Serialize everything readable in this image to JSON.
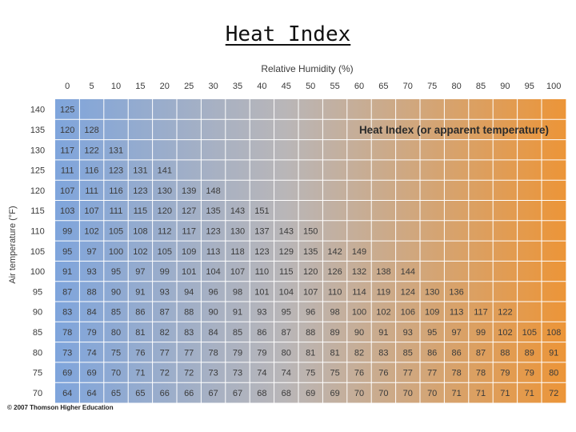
{
  "page": {
    "title": "Heat Index",
    "credit": "© 2007 Thomson Higher Education"
  },
  "colors": {
    "gradient_start": "#7fa5dc",
    "gradient_mid": "#b9b6b8",
    "gradient_end": "#ec9538",
    "grid_line": "#ffffff",
    "text": "#3a3a3a"
  },
  "chart_data": {
    "type": "table",
    "title": "Heat Index (or apparent temperature)",
    "xlabel": "Relative Humidity (%)",
    "ylabel": "Air temperature (°F)",
    "columns": [
      0,
      5,
      10,
      15,
      20,
      25,
      30,
      35,
      40,
      45,
      50,
      55,
      60,
      65,
      70,
      75,
      80,
      85,
      90,
      95,
      100
    ],
    "rows": [
      {
        "temp": 140,
        "values": [
          125
        ]
      },
      {
        "temp": 135,
        "values": [
          120,
          128
        ]
      },
      {
        "temp": 130,
        "values": [
          117,
          122,
          131
        ]
      },
      {
        "temp": 125,
        "values": [
          111,
          116,
          123,
          131,
          141
        ]
      },
      {
        "temp": 120,
        "values": [
          107,
          111,
          116,
          123,
          130,
          139,
          148
        ]
      },
      {
        "temp": 115,
        "values": [
          103,
          107,
          111,
          115,
          120,
          127,
          135,
          143,
          151
        ]
      },
      {
        "temp": 110,
        "values": [
          99,
          102,
          105,
          108,
          112,
          117,
          123,
          130,
          137,
          143,
          150
        ]
      },
      {
        "temp": 105,
        "values": [
          95,
          97,
          100,
          102,
          105,
          109,
          113,
          118,
          123,
          129,
          135,
          142,
          149
        ]
      },
      {
        "temp": 100,
        "values": [
          91,
          93,
          95,
          97,
          99,
          101,
          104,
          107,
          110,
          115,
          120,
          126,
          132,
          138,
          144
        ]
      },
      {
        "temp": 95,
        "values": [
          87,
          88,
          90,
          91,
          93,
          94,
          96,
          98,
          101,
          104,
          107,
          110,
          114,
          119,
          124,
          130,
          136
        ]
      },
      {
        "temp": 90,
        "values": [
          83,
          84,
          85,
          86,
          87,
          88,
          90,
          91,
          93,
          95,
          96,
          98,
          100,
          102,
          106,
          109,
          113,
          117,
          122
        ]
      },
      {
        "temp": 85,
        "values": [
          78,
          79,
          80,
          81,
          82,
          83,
          84,
          85,
          86,
          87,
          88,
          89,
          90,
          91,
          93,
          95,
          97,
          99,
          102,
          105,
          108
        ]
      },
      {
        "temp": 80,
        "values": [
          73,
          74,
          75,
          76,
          77,
          77,
          78,
          79,
          79,
          80,
          81,
          81,
          82,
          83,
          85,
          86,
          86,
          87,
          88,
          89,
          91
        ]
      },
      {
        "temp": 75,
        "values": [
          69,
          69,
          70,
          71,
          72,
          72,
          73,
          73,
          74,
          74,
          75,
          75,
          76,
          76,
          77,
          77,
          78,
          78,
          79,
          79,
          80
        ]
      },
      {
        "temp": 70,
        "values": [
          64,
          64,
          65,
          65,
          66,
          66,
          67,
          67,
          68,
          68,
          69,
          69,
          70,
          70,
          70,
          70,
          71,
          71,
          71,
          71,
          72
        ]
      }
    ]
  }
}
